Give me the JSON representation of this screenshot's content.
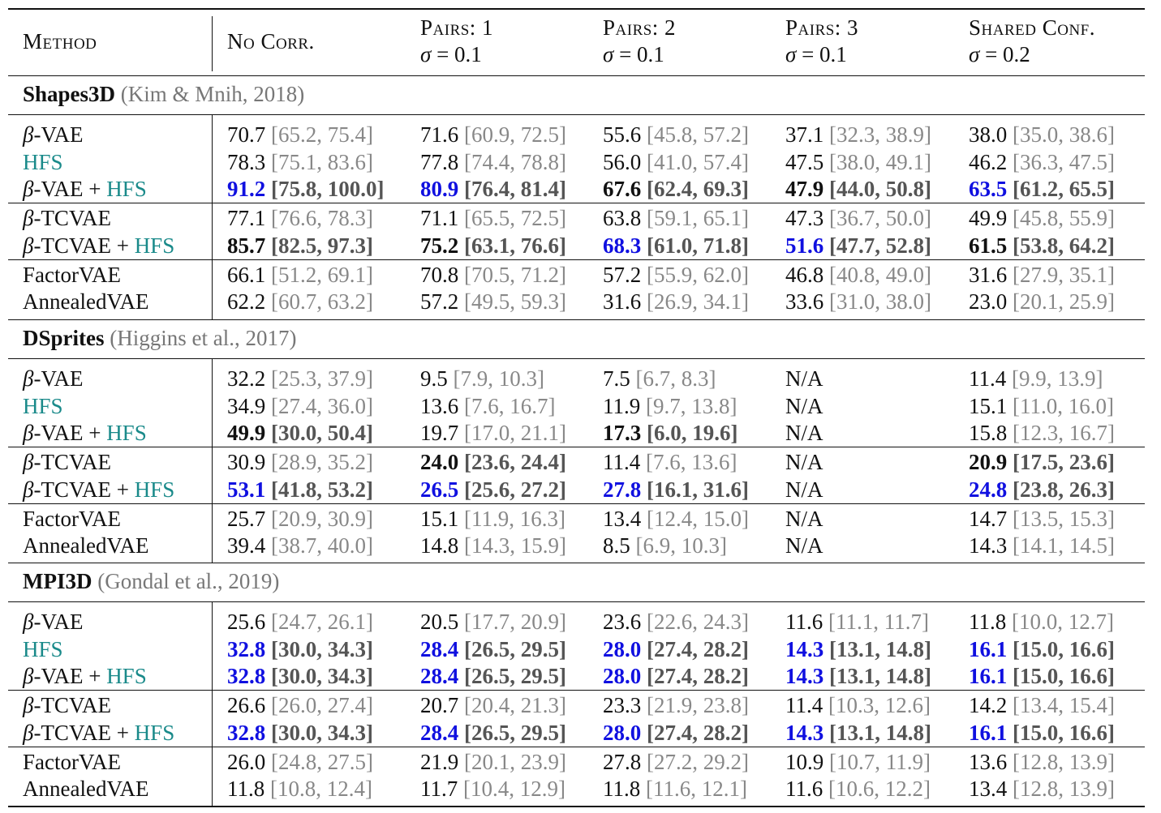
{
  "columns": [
    {
      "line1": "Method",
      "line2": ""
    },
    {
      "line1": "No Corr.",
      "line2": ""
    },
    {
      "line1": "Pairs: 1",
      "line2": "σ = 0.1"
    },
    {
      "line1": "Pairs: 2",
      "line2": "σ = 0.1"
    },
    {
      "line1": "Pairs: 3",
      "line2": "σ = 0.1"
    },
    {
      "line1": "Shared Conf.",
      "line2": "σ = 0.2"
    }
  ],
  "sections": [
    {
      "name": "Shapes3D",
      "citation": "(Kim & Mnih, 2018)",
      "rows": [
        {
          "method": "β-VAE",
          "cells": [
            {
              "v": "70.7",
              "ci": "[65.2, 75.4]",
              "s": ""
            },
            {
              "v": "71.6",
              "ci": "[60.9, 72.5]",
              "s": ""
            },
            {
              "v": "55.6",
              "ci": "[45.8, 57.2]",
              "s": ""
            },
            {
              "v": "37.1",
              "ci": "[32.3, 38.9]",
              "s": ""
            },
            {
              "v": "38.0",
              "ci": "[35.0, 38.6]",
              "s": ""
            }
          ]
        },
        {
          "method": "HFS",
          "cells": [
            {
              "v": "78.3",
              "ci": "[75.1, 83.6]",
              "s": ""
            },
            {
              "v": "77.8",
              "ci": "[74.4, 78.8]",
              "s": ""
            },
            {
              "v": "56.0",
              "ci": "[41.0, 57.4]",
              "s": ""
            },
            {
              "v": "47.5",
              "ci": "[38.0, 49.1]",
              "s": ""
            },
            {
              "v": "46.2",
              "ci": "[36.3, 47.5]",
              "s": ""
            }
          ]
        },
        {
          "method": "β-VAE + HFS",
          "cells": [
            {
              "v": "91.2",
              "ci": "[75.8, 100.0]",
              "s": "blue"
            },
            {
              "v": "80.9",
              "ci": "[76.4, 81.4]",
              "s": "blue"
            },
            {
              "v": "67.6",
              "ci": "[62.4, 69.3]",
              "s": "bold"
            },
            {
              "v": "47.9",
              "ci": "[44.0, 50.8]",
              "s": "bold"
            },
            {
              "v": "63.5",
              "ci": "[61.2, 65.5]",
              "s": "blue"
            }
          ]
        },
        {
          "method": "β-TCVAE",
          "cells": [
            {
              "v": "77.1",
              "ci": "[76.6, 78.3]",
              "s": ""
            },
            {
              "v": "71.1",
              "ci": "[65.5, 72.5]",
              "s": ""
            },
            {
              "v": "63.8",
              "ci": "[59.1, 65.1]",
              "s": ""
            },
            {
              "v": "47.3",
              "ci": "[36.7, 50.0]",
              "s": ""
            },
            {
              "v": "49.9",
              "ci": "[45.8, 55.9]",
              "s": ""
            }
          ]
        },
        {
          "method": "β-TCVAE + HFS",
          "cells": [
            {
              "v": "85.7",
              "ci": "[82.5, 97.3]",
              "s": "bold"
            },
            {
              "v": "75.2",
              "ci": "[63.1, 76.6]",
              "s": "bold"
            },
            {
              "v": "68.3",
              "ci": "[61.0, 71.8]",
              "s": "blue"
            },
            {
              "v": "51.6",
              "ci": "[47.7, 52.8]",
              "s": "blue"
            },
            {
              "v": "61.5",
              "ci": "[53.8, 64.2]",
              "s": "bold"
            }
          ]
        },
        {
          "method": "FactorVAE",
          "cells": [
            {
              "v": "66.1",
              "ci": "[51.2, 69.1]",
              "s": ""
            },
            {
              "v": "70.8",
              "ci": "[70.5, 71.2]",
              "s": ""
            },
            {
              "v": "57.2",
              "ci": "[55.9, 62.0]",
              "s": ""
            },
            {
              "v": "46.8",
              "ci": "[40.8, 49.0]",
              "s": ""
            },
            {
              "v": "31.6",
              "ci": "[27.9, 35.1]",
              "s": ""
            }
          ]
        },
        {
          "method": "AnnealedVAE",
          "cells": [
            {
              "v": "62.2",
              "ci": "[60.7, 63.2]",
              "s": ""
            },
            {
              "v": "57.2",
              "ci": "[49.5, 59.3]",
              "s": ""
            },
            {
              "v": "31.6",
              "ci": "[26.9, 34.1]",
              "s": ""
            },
            {
              "v": "33.6",
              "ci": "[31.0, 38.0]",
              "s": ""
            },
            {
              "v": "23.0",
              "ci": "[20.1, 25.9]",
              "s": ""
            }
          ]
        }
      ]
    },
    {
      "name": "DSprites",
      "citation": "(Higgins et al., 2017)",
      "rows": [
        {
          "method": "β-VAE",
          "cells": [
            {
              "v": "32.2",
              "ci": "[25.3, 37.9]",
              "s": ""
            },
            {
              "v": "9.5",
              "ci": "[7.9, 10.3]",
              "s": ""
            },
            {
              "v": "7.5",
              "ci": "[6.7, 8.3]",
              "s": ""
            },
            {
              "v": "N/A",
              "ci": "",
              "s": ""
            },
            {
              "v": "11.4",
              "ci": "[9.9, 13.9]",
              "s": ""
            }
          ]
        },
        {
          "method": "HFS",
          "cells": [
            {
              "v": "34.9",
              "ci": "[27.4, 36.0]",
              "s": ""
            },
            {
              "v": "13.6",
              "ci": "[7.6, 16.7]",
              "s": ""
            },
            {
              "v": "11.9",
              "ci": "[9.7, 13.8]",
              "s": ""
            },
            {
              "v": "N/A",
              "ci": "",
              "s": ""
            },
            {
              "v": "15.1",
              "ci": "[11.0, 16.0]",
              "s": ""
            }
          ]
        },
        {
          "method": "β-VAE + HFS",
          "cells": [
            {
              "v": "49.9",
              "ci": "[30.0, 50.4]",
              "s": "bold"
            },
            {
              "v": "19.7",
              "ci": "[17.0, 21.1]",
              "s": ""
            },
            {
              "v": "17.3",
              "ci": "[6.0, 19.6]",
              "s": "bold"
            },
            {
              "v": "N/A",
              "ci": "",
              "s": ""
            },
            {
              "v": "15.8",
              "ci": "[12.3, 16.7]",
              "s": ""
            }
          ]
        },
        {
          "method": "β-TCVAE",
          "cells": [
            {
              "v": "30.9",
              "ci": "[28.9, 35.2]",
              "s": ""
            },
            {
              "v": "24.0",
              "ci": "[23.6, 24.4]",
              "s": "bold"
            },
            {
              "v": "11.4",
              "ci": "[7.6, 13.6]",
              "s": ""
            },
            {
              "v": "N/A",
              "ci": "",
              "s": ""
            },
            {
              "v": "20.9",
              "ci": "[17.5, 23.6]",
              "s": "bold"
            }
          ]
        },
        {
          "method": "β-TCVAE + HFS",
          "cells": [
            {
              "v": "53.1",
              "ci": "[41.8, 53.2]",
              "s": "blue"
            },
            {
              "v": "26.5",
              "ci": "[25.6, 27.2]",
              "s": "blue"
            },
            {
              "v": "27.8",
              "ci": "[16.1, 31.6]",
              "s": "blue"
            },
            {
              "v": "N/A",
              "ci": "",
              "s": ""
            },
            {
              "v": "24.8",
              "ci": "[23.8, 26.3]",
              "s": "blue"
            }
          ]
        },
        {
          "method": "FactorVAE",
          "cells": [
            {
              "v": "25.7",
              "ci": "[20.9, 30.9]",
              "s": ""
            },
            {
              "v": "15.1",
              "ci": "[11.9, 16.3]",
              "s": ""
            },
            {
              "v": "13.4",
              "ci": "[12.4, 15.0]",
              "s": ""
            },
            {
              "v": "N/A",
              "ci": "",
              "s": ""
            },
            {
              "v": "14.7",
              "ci": "[13.5, 15.3]",
              "s": ""
            }
          ]
        },
        {
          "method": "AnnealedVAE",
          "cells": [
            {
              "v": "39.4",
              "ci": "[38.7, 40.0]",
              "s": ""
            },
            {
              "v": "14.8",
              "ci": "[14.3, 15.9]",
              "s": ""
            },
            {
              "v": "8.5",
              "ci": "[6.9, 10.3]",
              "s": ""
            },
            {
              "v": "N/A",
              "ci": "",
              "s": ""
            },
            {
              "v": "14.3",
              "ci": "[14.1, 14.5]",
              "s": ""
            }
          ]
        }
      ]
    },
    {
      "name": "MPI3D",
      "citation": "(Gondal et al., 2019)",
      "rows": [
        {
          "method": "β-VAE",
          "cells": [
            {
              "v": "25.6",
              "ci": "[24.7, 26.1]",
              "s": ""
            },
            {
              "v": "20.5",
              "ci": "[17.7, 20.9]",
              "s": ""
            },
            {
              "v": "23.6",
              "ci": "[22.6, 24.3]",
              "s": ""
            },
            {
              "v": "11.6",
              "ci": "[11.1, 11.7]",
              "s": ""
            },
            {
              "v": "11.8",
              "ci": "[10.0, 12.7]",
              "s": ""
            }
          ]
        },
        {
          "method": "HFS",
          "cells": [
            {
              "v": "32.8",
              "ci": "[30.0, 34.3]",
              "s": "blue"
            },
            {
              "v": "28.4",
              "ci": "[26.5, 29.5]",
              "s": "blue"
            },
            {
              "v": "28.0",
              "ci": "[27.4, 28.2]",
              "s": "blue"
            },
            {
              "v": "14.3",
              "ci": "[13.1, 14.8]",
              "s": "blue"
            },
            {
              "v": "16.1",
              "ci": "[15.0, 16.6]",
              "s": "blue"
            }
          ]
        },
        {
          "method": "β-VAE + HFS",
          "cells": [
            {
              "v": "32.8",
              "ci": "[30.0, 34.3]",
              "s": "blue"
            },
            {
              "v": "28.4",
              "ci": "[26.5, 29.5]",
              "s": "blue"
            },
            {
              "v": "28.0",
              "ci": "[27.4, 28.2]",
              "s": "blue"
            },
            {
              "v": "14.3",
              "ci": "[13.1, 14.8]",
              "s": "blue"
            },
            {
              "v": "16.1",
              "ci": "[15.0, 16.6]",
              "s": "blue"
            }
          ]
        },
        {
          "method": "β-TCVAE",
          "cells": [
            {
              "v": "26.6",
              "ci": "[26.0, 27.4]",
              "s": ""
            },
            {
              "v": "20.7",
              "ci": "[20.4, 21.3]",
              "s": ""
            },
            {
              "v": "23.3",
              "ci": "[21.9, 23.8]",
              "s": ""
            },
            {
              "v": "11.4",
              "ci": "[10.3, 12.6]",
              "s": ""
            },
            {
              "v": "14.2",
              "ci": "[13.4, 15.4]",
              "s": ""
            }
          ]
        },
        {
          "method": "β-TCVAE + HFS",
          "cells": [
            {
              "v": "32.8",
              "ci": "[30.0, 34.3]",
              "s": "blue"
            },
            {
              "v": "28.4",
              "ci": "[26.5, 29.5]",
              "s": "blue"
            },
            {
              "v": "28.0",
              "ci": "[27.4, 28.2]",
              "s": "blue"
            },
            {
              "v": "14.3",
              "ci": "[13.1, 14.8]",
              "s": "blue"
            },
            {
              "v": "16.1",
              "ci": "[15.0, 16.6]",
              "s": "blue"
            }
          ]
        },
        {
          "method": "FactorVAE",
          "cells": [
            {
              "v": "26.0",
              "ci": "[24.8, 27.5]",
              "s": ""
            },
            {
              "v": "21.9",
              "ci": "[20.1, 23.9]",
              "s": ""
            },
            {
              "v": "27.8",
              "ci": "[27.2, 29.2]",
              "s": ""
            },
            {
              "v": "10.9",
              "ci": "[10.7, 11.9]",
              "s": ""
            },
            {
              "v": "13.6",
              "ci": "[12.8, 13.9]",
              "s": ""
            }
          ]
        },
        {
          "method": "AnnealedVAE",
          "cells": [
            {
              "v": "11.8",
              "ci": "[10.8, 12.4]",
              "s": ""
            },
            {
              "v": "11.7",
              "ci": "[10.4, 12.9]",
              "s": ""
            },
            {
              "v": "11.8",
              "ci": "[11.6, 12.1]",
              "s": ""
            },
            {
              "v": "11.6",
              "ci": "[10.6, 12.2]",
              "s": ""
            },
            {
              "v": "13.4",
              "ci": "[12.8, 13.9]",
              "s": ""
            }
          ]
        }
      ]
    }
  ]
}
